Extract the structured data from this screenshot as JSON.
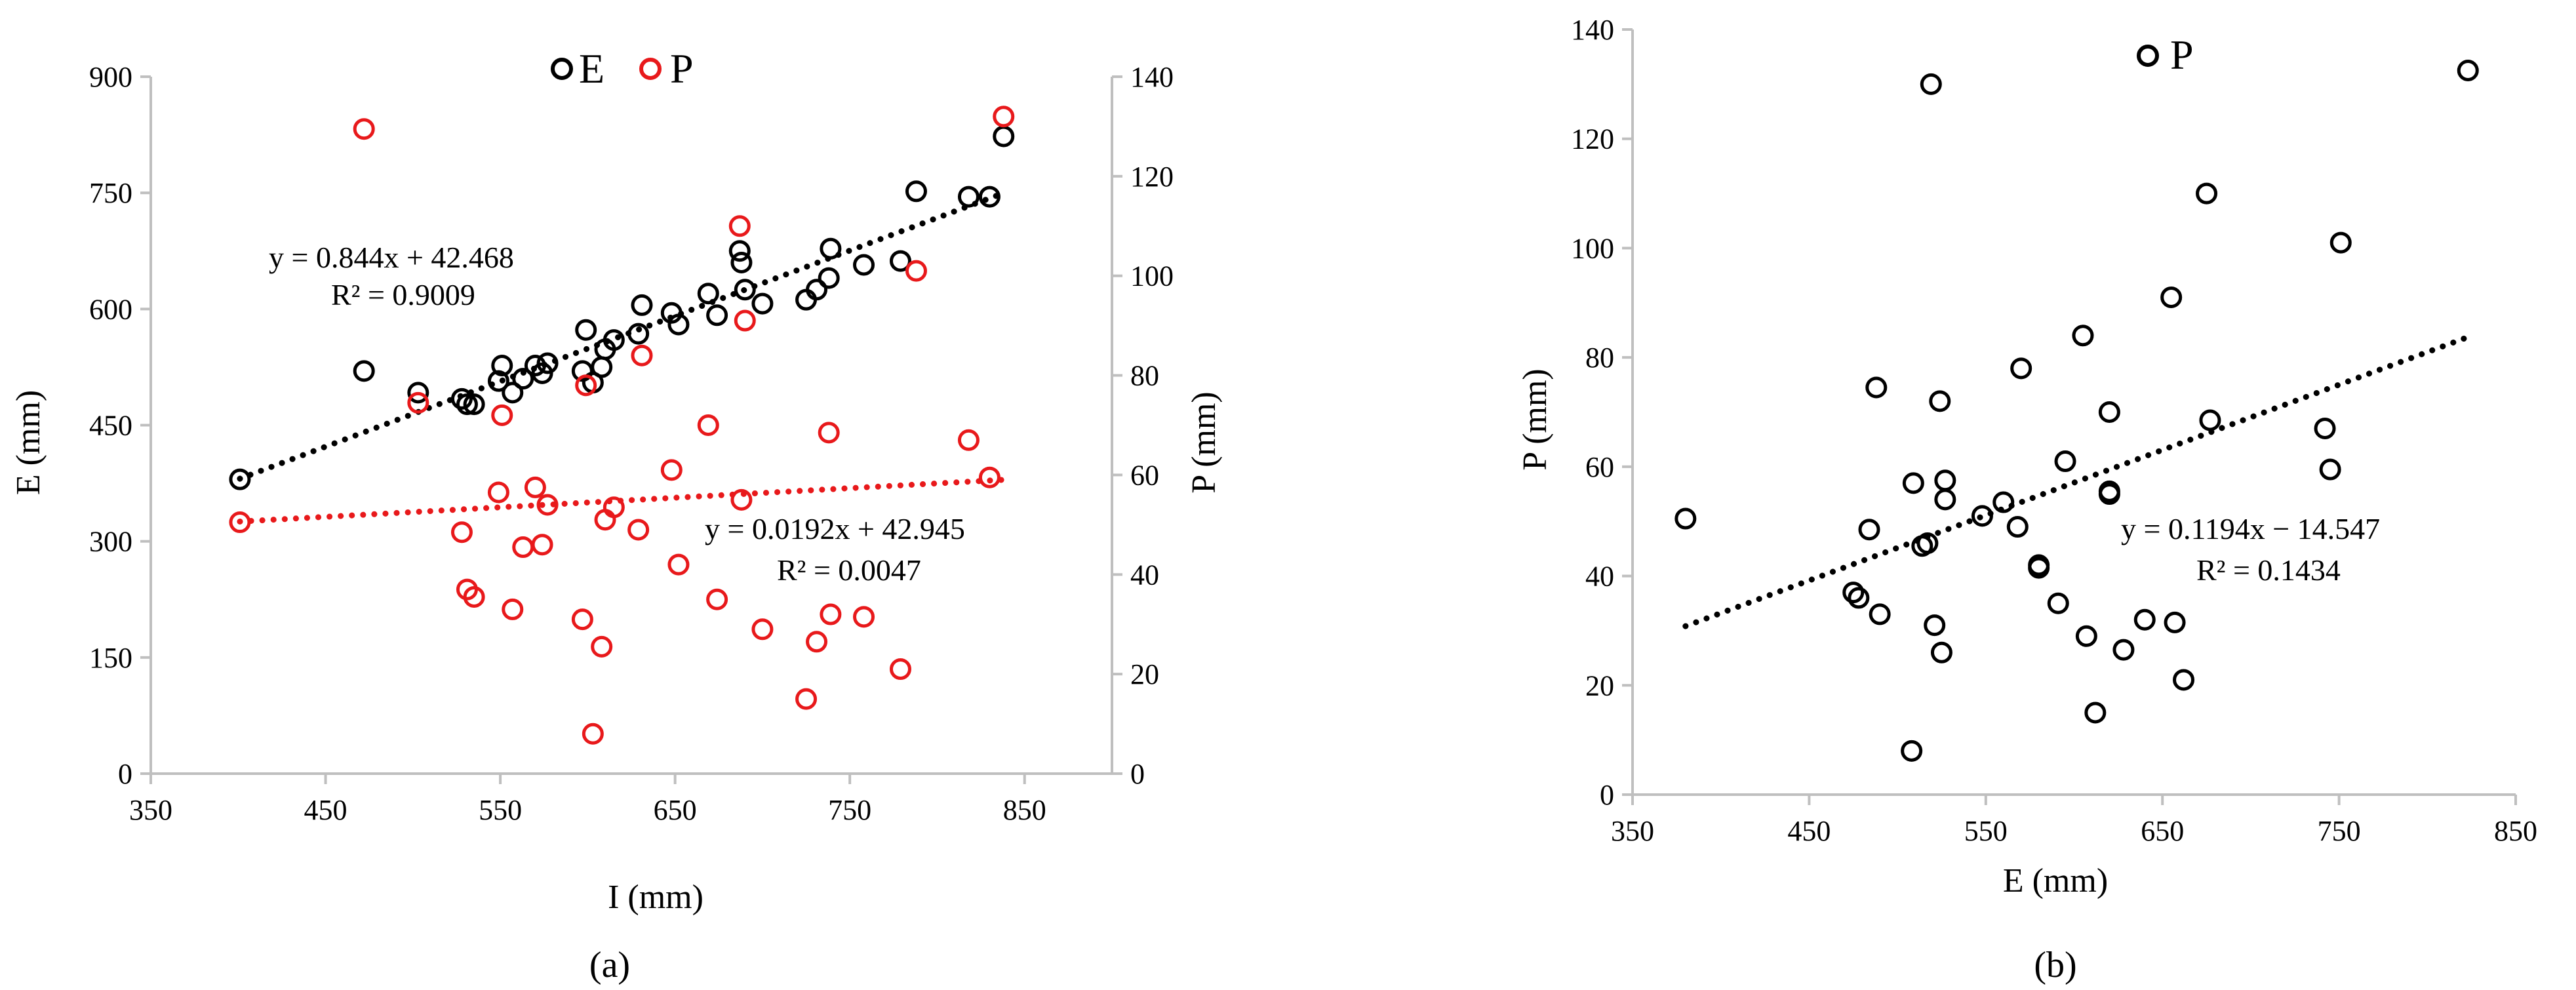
{
  "chart_data": [
    {
      "type": "scatter",
      "panel_label": "(a)",
      "xlabel": "I (mm)",
      "ylabel": "E (mm)",
      "y2label": "P (mm)",
      "xlim": [
        350,
        900
      ],
      "ylim": [
        0,
        900
      ],
      "y2lim": [
        0,
        140
      ],
      "xticks": [
        350,
        450,
        550,
        650,
        750,
        850
      ],
      "yticks": [
        0,
        150,
        300,
        450,
        600,
        750,
        900
      ],
      "y2ticks": [
        0,
        20,
        40,
        60,
        80,
        100,
        120,
        140
      ],
      "legend": {
        "position": "top-center",
        "entries": [
          "E",
          "P"
        ]
      },
      "colors": {
        "E": "#000000",
        "P": "#e8191b"
      },
      "series": [
        {
          "name": "E",
          "axis": "left",
          "color": "#000000",
          "x": [
            401,
            472,
            503,
            528,
            531,
            535,
            549,
            551,
            557,
            563,
            570,
            574,
            577,
            597,
            599,
            603,
            608,
            610,
            615,
            629,
            631,
            648,
            652,
            669,
            674,
            687,
            688,
            690,
            700,
            725,
            731,
            738,
            739,
            758,
            779,
            788,
            818,
            830,
            838
          ],
          "y": [
            380,
            520,
            492,
            484,
            477,
            477,
            507,
            527,
            492,
            510,
            527,
            517,
            530,
            520,
            573,
            505,
            525,
            548,
            560,
            568,
            605,
            595,
            580,
            620,
            592,
            675,
            660,
            625,
            607,
            612,
            625,
            640,
            678,
            657,
            662,
            752,
            745,
            745,
            823
          ],
          "trendline": {
            "equation": "y = 0.844x + 42.468",
            "r2": "R² = 0.9009",
            "slope": 0.844,
            "intercept": 42.468,
            "x_range": [
              401,
              838
            ]
          }
        },
        {
          "name": "P",
          "axis": "right",
          "color": "#e8191b",
          "x": [
            401,
            472,
            503,
            528,
            531,
            535,
            549,
            551,
            557,
            563,
            570,
            574,
            577,
            597,
            599,
            603,
            608,
            610,
            615,
            629,
            631,
            648,
            652,
            669,
            674,
            687,
            688,
            690,
            700,
            725,
            731,
            738,
            739,
            758,
            779,
            788,
            818,
            830,
            838
          ],
          "y": [
            50.5,
            129.5,
            74.5,
            48.5,
            37,
            35.5,
            56.5,
            72,
            33,
            45.5,
            57.5,
            46,
            54,
            31,
            78,
            8,
            25.5,
            51,
            53.5,
            49,
            84,
            61,
            42,
            70,
            35,
            110,
            55,
            91,
            29,
            15,
            26.5,
            68.5,
            32,
            31.5,
            21,
            101,
            67,
            59.5,
            132
          ],
          "trendline": {
            "equation": "y = 0.0192x + 42.945",
            "r2": "R² = 0.0047",
            "slope": 0.0192,
            "intercept": 42.945,
            "x_range": [
              401,
              838
            ]
          }
        }
      ]
    },
    {
      "type": "scatter",
      "panel_label": "(b)",
      "xlabel": "E (mm)",
      "ylabel": "P (mm)",
      "xlim": [
        350,
        850
      ],
      "ylim": [
        0,
        140
      ],
      "xticks": [
        350,
        450,
        550,
        650,
        750,
        850
      ],
      "yticks": [
        0,
        20,
        40,
        60,
        80,
        100,
        120,
        140
      ],
      "legend": {
        "position": "top-center",
        "entries": [
          "P"
        ]
      },
      "colors": {
        "P": "#000000"
      },
      "series": [
        {
          "name": "P",
          "color": "#000000",
          "x": [
            380,
            475,
            478,
            484,
            488,
            490,
            508,
            509,
            514,
            517,
            519,
            521,
            524,
            525,
            527,
            527,
            548,
            560,
            568,
            570,
            580,
            580,
            591,
            595,
            605,
            607,
            612,
            620,
            620,
            620,
            628,
            640,
            655,
            657,
            662,
            675,
            677,
            742,
            745,
            751,
            823
          ],
          "y": [
            50.5,
            37,
            36,
            48.5,
            74.5,
            33,
            8,
            57,
            45.5,
            46,
            130,
            31,
            72,
            26,
            57.5,
            54,
            51,
            53.5,
            49,
            78,
            42,
            41.5,
            35,
            61,
            84,
            29,
            15,
            70,
            55.5,
            55,
            26.5,
            32,
            91,
            31.5,
            21,
            110,
            68.5,
            67,
            59.5,
            101,
            132.5
          ],
          "trendline": {
            "equation": "y = 0.1194x − 14.547",
            "r2": "R² = 0.1434",
            "slope": 0.1194,
            "intercept": -14.547,
            "x_range": [
              380,
              823
            ]
          }
        }
      ]
    }
  ]
}
